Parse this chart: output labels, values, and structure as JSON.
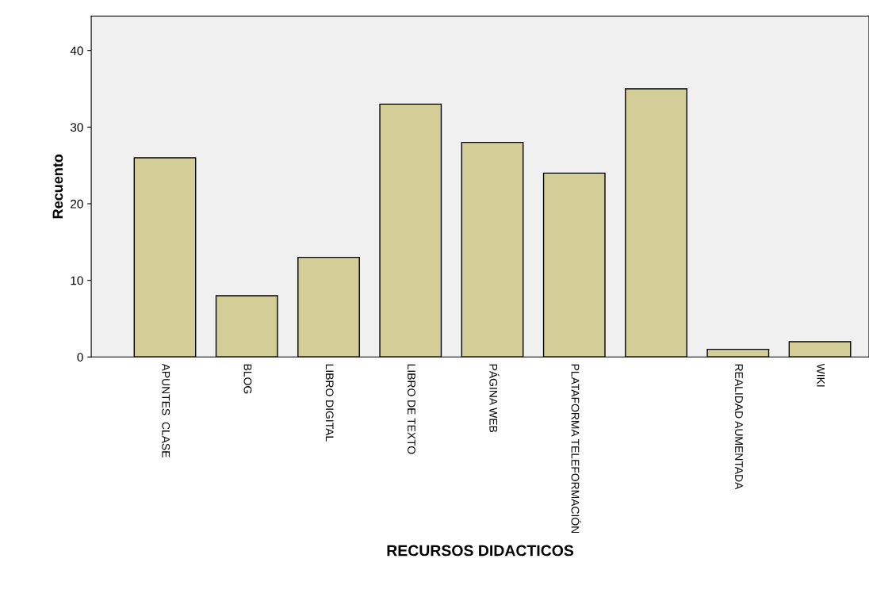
{
  "chart_data": {
    "type": "bar",
    "xlabel": "RECURSOS DIDACTICOS",
    "ylabel": "Recuento",
    "categories": [
      "APUNTES  CLASE",
      "BLOG",
      "LIBRO DIGITAL",
      "LIBRO DE TEXTO",
      "PÁGINA WEB",
      "PLATAFORMA TELEFORMACIÓN",
      null,
      "REALIDAD AUMENTADA",
      "WIKI"
    ],
    "values": [
      26,
      8,
      13,
      33,
      28,
      24,
      35,
      1,
      2
    ],
    "color": "#d3ce97",
    "ylim": [
      0,
      44.5
    ],
    "yticks": [
      0,
      10,
      20,
      30,
      40
    ],
    "grid": false,
    "legend": false
  }
}
